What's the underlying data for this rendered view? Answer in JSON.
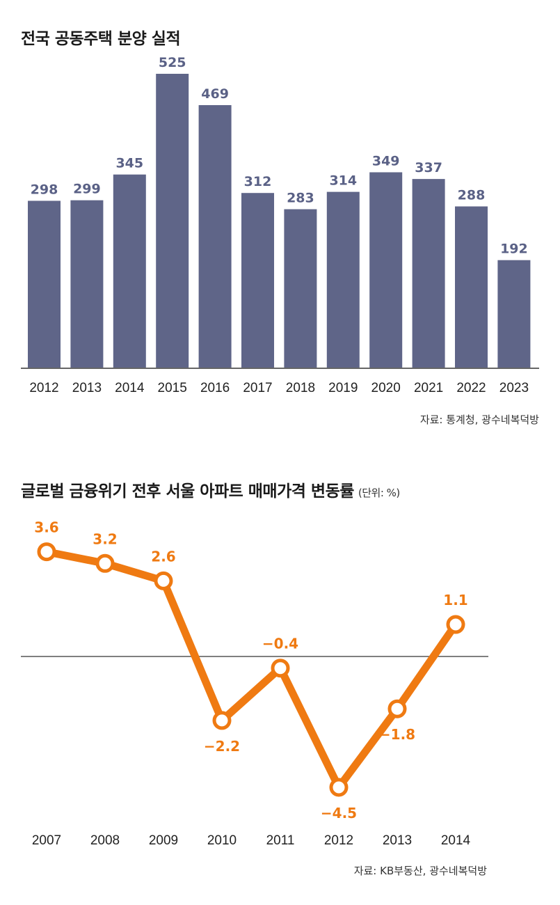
{
  "chart_data": [
    {
      "type": "bar",
      "title": "전국 공동주택 분양 실적",
      "categories": [
        "2012",
        "2013",
        "2014",
        "2015",
        "2016",
        "2017",
        "2018",
        "2019",
        "2020",
        "2021",
        "2022",
        "2023"
      ],
      "values": [
        298,
        299,
        345,
        525,
        469,
        312,
        283,
        314,
        349,
        337,
        288,
        192
      ],
      "ylim": [
        0,
        540
      ],
      "grid": false,
      "source": "자료: 통계청, 광수네복덕방",
      "colors": {
        "bar": "#5f6588",
        "label": "#5a6186"
      }
    },
    {
      "type": "line",
      "title": "글로벌 금융위기 전후 서울 아파트 매매가격 변동률",
      "unit": "(단위: %)",
      "x": [
        "2007",
        "2008",
        "2009",
        "2010",
        "2011",
        "2012",
        "2013",
        "2014"
      ],
      "values": [
        3.6,
        3.2,
        2.6,
        -2.2,
        -0.4,
        -4.5,
        -1.8,
        1.1
      ],
      "value_labels": [
        "3.6",
        "3.2",
        "2.6",
        "−2.2",
        "−0.4",
        "−4.5",
        "−1.8",
        "1.1"
      ],
      "ylim": [
        -5,
        4
      ],
      "grid": false,
      "source": "자료: KB부동산, 광수네복덕방",
      "colors": {
        "line": "#ef7a12",
        "marker_fill": "#ffffff"
      }
    }
  ]
}
